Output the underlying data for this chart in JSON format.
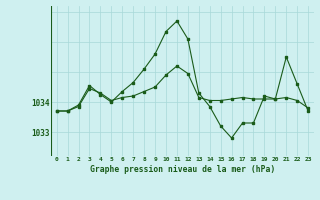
{
  "title": "Graphe pression niveau de la mer (hPa)",
  "bg_color": "#cff0f0",
  "grid_color": "#a8d8d8",
  "line_color": "#1a5c1a",
  "x_labels": [
    "0",
    "1",
    "2",
    "3",
    "4",
    "5",
    "6",
    "7",
    "8",
    "9",
    "10",
    "11",
    "12",
    "13",
    "14",
    "15",
    "16",
    "17",
    "18",
    "19",
    "20",
    "21",
    "22",
    "23"
  ],
  "y_ticks": [
    1033,
    1034
  ],
  "y_min": 1032.2,
  "y_max": 1037.2,
  "series1": [
    1033.7,
    1033.7,
    1033.85,
    1034.45,
    1034.3,
    1034.05,
    1034.15,
    1034.2,
    1034.35,
    1034.5,
    1034.9,
    1035.2,
    1034.95,
    1034.15,
    1034.05,
    1034.05,
    1034.1,
    1034.15,
    1034.1,
    1034.1,
    1034.1,
    1034.15,
    1034.05,
    1033.8
  ],
  "series2": [
    1033.7,
    1033.7,
    1033.9,
    1034.55,
    1034.25,
    1034.0,
    1034.35,
    1034.65,
    1035.1,
    1035.6,
    1036.35,
    1036.7,
    1036.1,
    1034.3,
    1033.85,
    1033.2,
    1032.8,
    1033.3,
    1033.3,
    1034.2,
    1034.1,
    1035.5,
    1034.6,
    1033.7
  ]
}
